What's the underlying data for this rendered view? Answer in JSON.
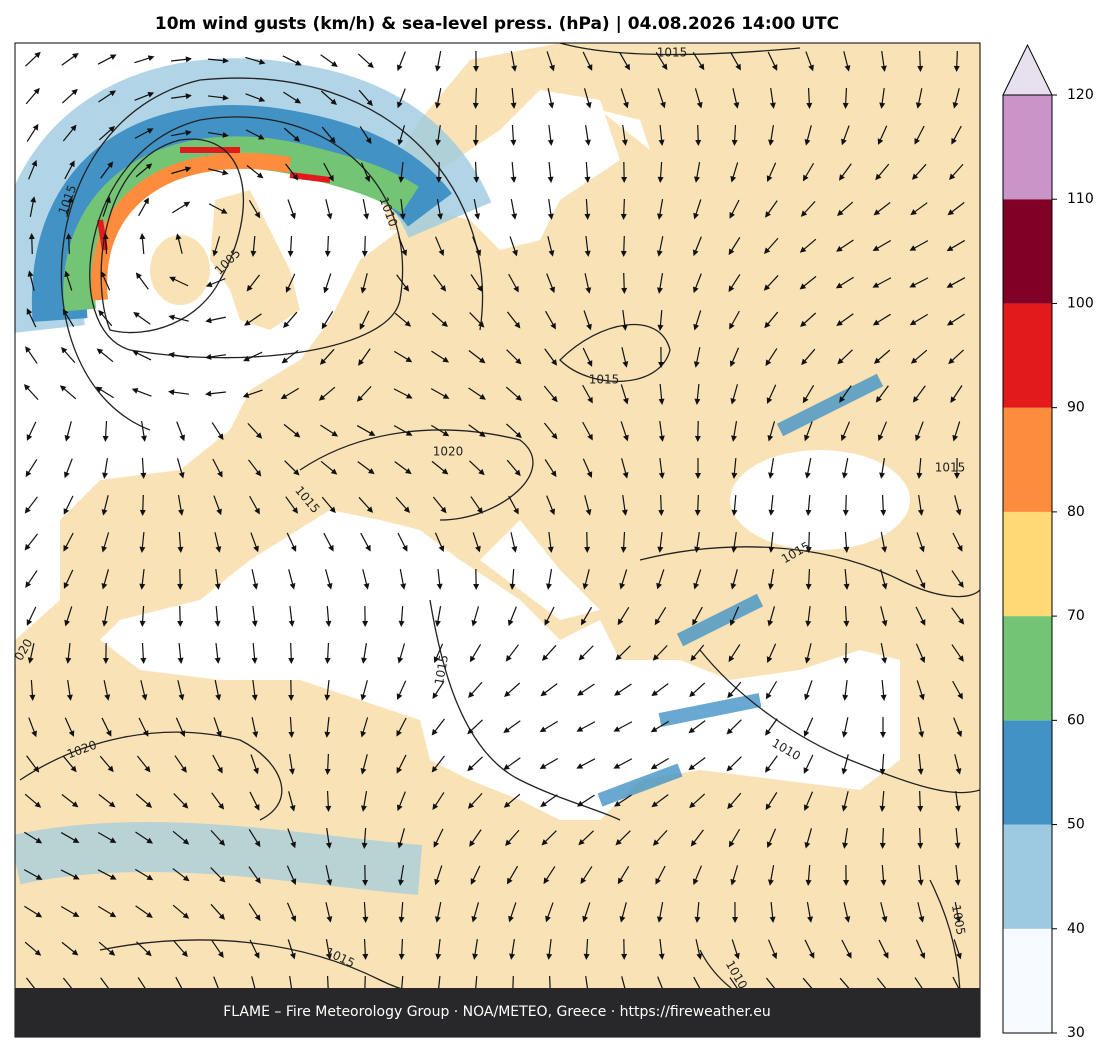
{
  "title": "10m wind gusts (km/h) & sea-level press. (hPa)  |  04.08.2026 14:00 UTC",
  "footer": "FLAME – Fire Meteorology Group · NOA/METEO, Greece · https://fireweather.eu",
  "colorbar": {
    "ticks": [
      30,
      40,
      50,
      60,
      70,
      80,
      90,
      100,
      110,
      120
    ],
    "colors": [
      "#f7fbff",
      "#9ecae1",
      "#4292c6",
      "#74c476",
      "#fed976",
      "#fd8d3c",
      "#e31a1c",
      "#800026",
      "#c994c7"
    ],
    "extend_color": "#e7e1ef"
  },
  "isobar_labels": [
    "1015",
    "1015",
    "1010",
    "1005",
    "1015",
    "1020",
    "1015",
    "1015",
    "1015",
    "020",
    "1015",
    "1010",
    "1020",
    "1015",
    "1010",
    "1005"
  ]
}
